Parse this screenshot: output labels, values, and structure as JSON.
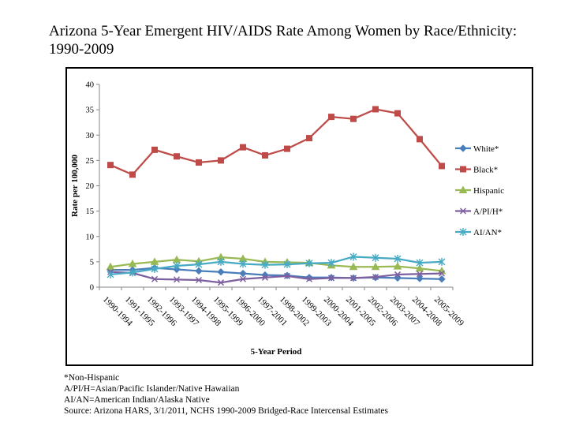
{
  "title": "Arizona 5-Year Emergent HIV/AIDS Rate Among Women by Race/Ethnicity: 1990-2009",
  "chart_data": {
    "type": "line",
    "title": "",
    "xlabel": "5-Year Period",
    "ylabel": "Rate per 100,000",
    "ylim": [
      0,
      40
    ],
    "yticks": [
      0,
      5,
      10,
      15,
      20,
      25,
      30,
      35,
      40
    ],
    "grid": false,
    "legend": "right",
    "categories": [
      "1990-1994",
      "1991-1995",
      "1992-1996",
      "1993-1997",
      "1994-1998",
      "1995-1999",
      "1996-2000",
      "1997-2001",
      "1998-2002",
      "1999-2003",
      "2000-2004",
      "2001-2005",
      "2002-2006",
      "2003-2007",
      "2004-2008",
      "2005-2009"
    ],
    "series": [
      {
        "name": "White*",
        "color": "#4a7ebb",
        "marker": "diamond",
        "values": [
          3.4,
          3.4,
          3.8,
          3.5,
          3.2,
          3.0,
          2.7,
          2.4,
          2.3,
          1.9,
          1.9,
          1.8,
          1.9,
          1.8,
          1.7,
          1.6
        ]
      },
      {
        "name": "Black*",
        "color": "#be4b48",
        "marker": "square",
        "values": [
          24.1,
          22.2,
          27.1,
          25.8,
          24.6,
          25.0,
          27.6,
          26.0,
          27.3,
          29.4,
          33.6,
          33.2,
          35.1,
          34.3,
          29.2,
          23.9
        ]
      },
      {
        "name": "Hispanic",
        "color": "#98b954",
        "marker": "triangle",
        "values": [
          4.0,
          4.6,
          5.0,
          5.4,
          5.1,
          5.9,
          5.6,
          5.0,
          4.9,
          4.8,
          4.3,
          4.0,
          4.0,
          4.1,
          3.7,
          3.2
        ]
      },
      {
        "name": "A/PI/H*",
        "color": "#7d60a0",
        "marker": "x",
        "values": [
          3.0,
          2.8,
          1.6,
          1.5,
          1.4,
          0.9,
          1.6,
          1.9,
          2.2,
          1.6,
          1.8,
          1.8,
          2.0,
          2.5,
          2.6,
          2.7
        ]
      },
      {
        "name": "AI/AN*",
        "color": "#46aac5",
        "marker": "star",
        "values": [
          2.5,
          2.9,
          3.6,
          4.2,
          4.5,
          5.0,
          4.6,
          4.4,
          4.5,
          4.7,
          4.8,
          6.0,
          5.8,
          5.6,
          4.8,
          5.0
        ]
      }
    ]
  },
  "footnotes": {
    "line1": "*Non-Hispanic",
    "line2": "A/PI/H=Asian/Pacific Islander/Native Hawaiian",
    "line3": "AI/AN=American Indian/Alaska Native",
    "line4": "Source: Arizona HARS, 3/1/2011, NCHS 1990-2009 Bridged-Race Intercensal Estimates"
  }
}
